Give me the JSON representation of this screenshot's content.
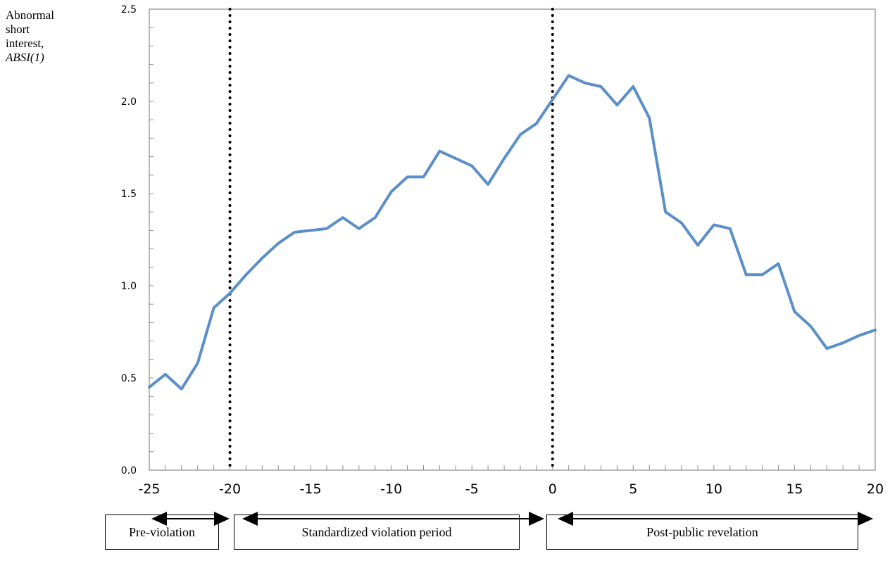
{
  "ylabel_lines": [
    "Abnormal",
    "short",
    "interest,"
  ],
  "ylabel_italic": "ABSI(1)",
  "chart_data": {
    "type": "line",
    "xlim": [
      -25,
      20
    ],
    "ylim": [
      0,
      2.5
    ],
    "xticks": [
      "-25",
      "-20",
      "-15",
      "-10",
      "-5",
      "0",
      "5",
      "10",
      "15",
      "20"
    ],
    "xtick_values": [
      -25,
      -20,
      -15,
      -10,
      -5,
      0,
      5,
      10,
      15,
      20
    ],
    "yticks": [
      "0.0",
      "0.5",
      "1.0",
      "1.5",
      "2.0",
      "2.5"
    ],
    "ytick_values": [
      0,
      0.5,
      1.0,
      1.5,
      2.0,
      2.5
    ],
    "vlines": [
      -20,
      0
    ],
    "grid": false,
    "color": "#5b8fc9",
    "series": [
      {
        "x": [
          -25,
          -24,
          -23,
          -22,
          -21,
          -20,
          -19,
          -18,
          -17,
          -16,
          -15,
          -14,
          -13,
          -12,
          -11,
          -10,
          -9,
          -8,
          -7,
          -6,
          -5,
          -4,
          -3,
          -2,
          -1,
          0,
          1,
          2,
          3,
          4,
          5,
          6,
          7,
          8,
          9,
          10,
          11,
          12,
          13,
          14,
          15,
          16,
          17,
          18,
          19,
          20
        ],
        "y": [
          0.45,
          0.52,
          0.44,
          0.58,
          0.88,
          0.96,
          1.06,
          1.15,
          1.23,
          1.29,
          1.3,
          1.31,
          1.37,
          1.31,
          1.37,
          1.51,
          1.59,
          1.59,
          1.73,
          1.69,
          1.65,
          1.55,
          1.69,
          1.82,
          1.88,
          2.01,
          2.14,
          2.1,
          2.08,
          1.98,
          2.08,
          1.91,
          1.4,
          1.34,
          1.22,
          1.33,
          1.31,
          1.06,
          1.06,
          1.12,
          0.86,
          0.78,
          0.66,
          0.69,
          0.73,
          0.76
        ]
      }
    ]
  },
  "periods": [
    {
      "label": "Pre-violation",
      "from": -25,
      "to": -20
    },
    {
      "label": "Standardized violation period",
      "from": -20,
      "to": 0
    },
    {
      "label": "Post-public revelation",
      "from": 0,
      "to": 20
    }
  ]
}
